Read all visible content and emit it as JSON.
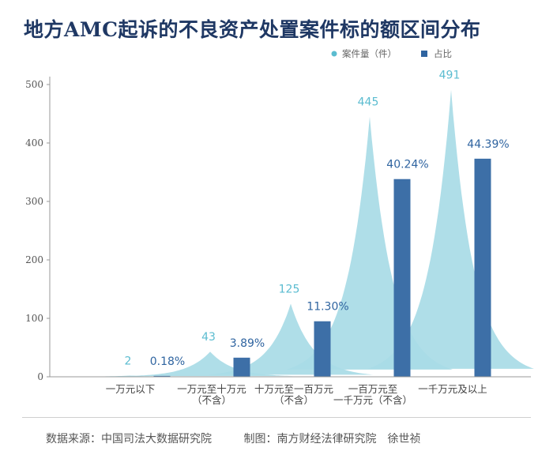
{
  "chart_data": {
    "type": "bar",
    "title": "地方AMC起诉的不良资产处置案件标的额区间分布",
    "legend": [
      {
        "name": "案件量（件）",
        "color": "#5bbcd0",
        "marker": "circle"
      },
      {
        "name": "占比",
        "color": "#2f64a0",
        "marker": "square"
      }
    ],
    "categories": [
      [
        "一万元以下"
      ],
      [
        "一万元至十万元",
        "（不含）"
      ],
      [
        "十万元至一百万元",
        "（不含）"
      ],
      [
        "一百万元至",
        "一千万元（不含）"
      ],
      [
        "一千万元及以上"
      ]
    ],
    "series": [
      {
        "name": "案件量（件）",
        "chart": "area-peak",
        "values": [
          2,
          43,
          125,
          445,
          491
        ],
        "labels": [
          "2",
          "43",
          "125",
          "445",
          "491"
        ],
        "color": "#a8dbe6",
        "label_color": "#5bbcd0"
      },
      {
        "name": "占比",
        "chart": "bar",
        "values": [
          0.18,
          3.89,
          11.3,
          40.24,
          44.39
        ],
        "labels": [
          "0.18%",
          "3.89%",
          "11.30%",
          "40.24%",
          "44.39%"
        ],
        "color": "#3d6fa7",
        "label_color": "#2f64a0"
      }
    ],
    "ylim": [
      0,
      500
    ],
    "yticks": [
      "0",
      "100",
      "200",
      "300",
      "400",
      "500"
    ],
    "bar_scale_note": "bars share the 0–500 axis visually as percent × ~6.2"
  },
  "footer": {
    "source": "数据来源：中国司法大数据研究院",
    "credit": "制图：南方财经法律研究院　徐世祯"
  }
}
